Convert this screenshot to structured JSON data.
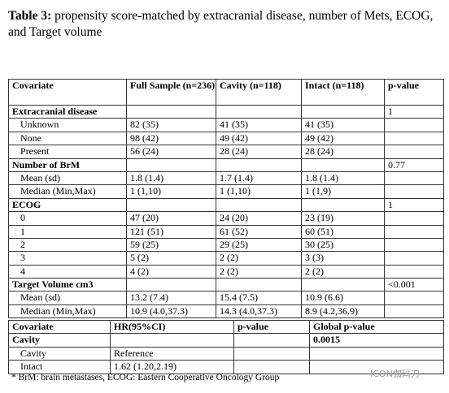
{
  "title": {
    "label": "Table 3:",
    "text": "propensity score-matched by extracranial disease, number of Mets, ECOG, and Target volume"
  },
  "table1": {
    "header": [
      "Covariate",
      "Full Sample (n=236)",
      "Cavity (n=118)",
      "Intact (n=118)",
      "p-value"
    ],
    "rows": [
      {
        "label": "Extracranial disease",
        "p": "1"
      },
      {
        "label": "Unknown",
        "values": [
          "82 (35)",
          "41 (35)",
          "41 (35)"
        ]
      },
      {
        "label": "None",
        "values": [
          "98 (42)",
          "49 (42)",
          "49 (42)"
        ]
      },
      {
        "label": "Present",
        "values": [
          "56 (24)",
          "28 (24)",
          "28 (24)"
        ]
      },
      {
        "label": "Number of BrM",
        "p": "0.77"
      },
      {
        "label": "Mean (sd)",
        "values": [
          "1.8 (1.4)",
          "1.7 (1.4)",
          "1.8 (1.4)"
        ]
      },
      {
        "label": "Median (Min,Max)",
        "values": [
          "1 (1,10)",
          "1 (1,10)",
          "1 (1,9)"
        ]
      },
      {
        "label": "ECOG",
        "p": "1"
      },
      {
        "label": "0",
        "values": [
          "47 (20)",
          "24 (20)",
          "23 (19)"
        ]
      },
      {
        "label": "1",
        "values": [
          "121 (51)",
          "61 (52)",
          "60 (51)"
        ]
      },
      {
        "label": "2",
        "values": [
          "59 (25)",
          "29 (25)",
          "30 (25)"
        ]
      },
      {
        "label": "3",
        "values": [
          "5 (2)",
          "2 (2)",
          "3 (3)"
        ]
      },
      {
        "label": "4",
        "values": [
          "4 (2)",
          "2 (2)",
          "2 (2)"
        ]
      },
      {
        "label": "Target Volume cm3",
        "p": "<0.001"
      },
      {
        "label": "Mean (sd)",
        "values": [
          "13.2 (7.4)",
          "15.4 (7.5)",
          "10.9 (6.6)"
        ]
      },
      {
        "label": "Median (Min,Max)",
        "values": [
          "10.9 (4.0,37.3)",
          "14.3 (4.0,37.3)",
          "8.9 (4.2,36.9)"
        ]
      }
    ]
  },
  "table2": {
    "header": [
      "Covariate",
      "HR(95%CI)",
      "p-value",
      "Global p-value"
    ],
    "rows": [
      {
        "label": "Cavity",
        "global_p": "0.0015"
      },
      {
        "label": "Cavity",
        "hr": "Reference"
      },
      {
        "label": "Intact",
        "hr": "1.62 (1.20,2.19)"
      }
    ]
  },
  "footnote": "* BrM: brain metastases, ECOG: Eastern Cooperative Oncology Group",
  "watermark": "ICON伽玛刀"
}
